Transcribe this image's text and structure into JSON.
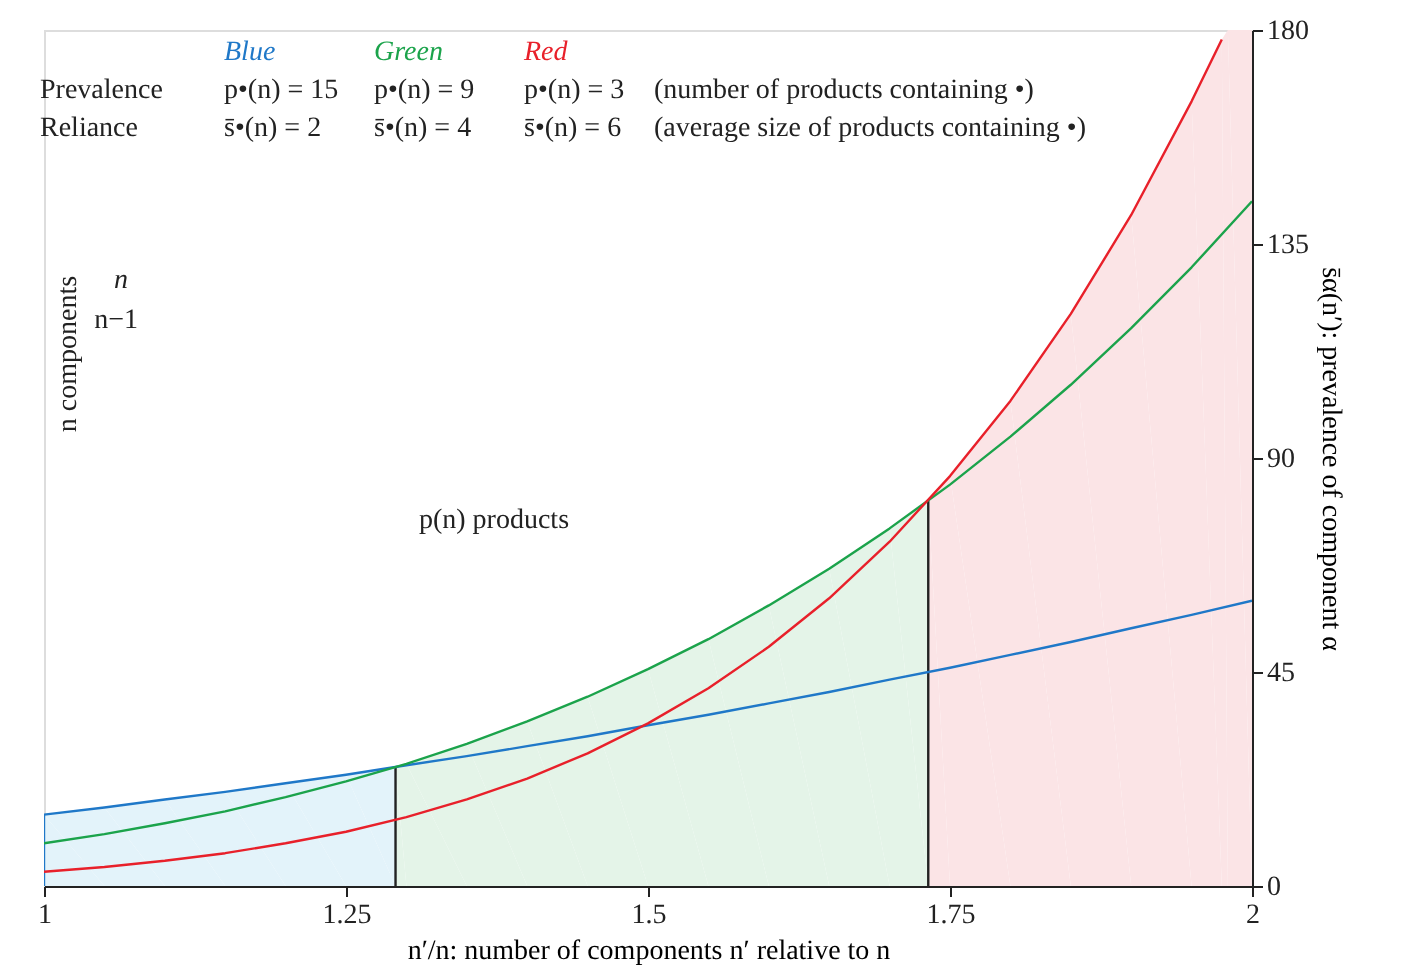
{
  "chart_data": {
    "type": "line",
    "xlabel": "n′/n: number of components n′ relative to n",
    "ylabel": "s̄α(n′): prevalence of component α",
    "xlim": [
      1,
      2
    ],
    "xticks": [
      1,
      1.25,
      1.5,
      1.75,
      2
    ],
    "ylim": [
      0,
      180
    ],
    "yticks": [
      0,
      45,
      90,
      135,
      180
    ],
    "grid": false,
    "series": [
      {
        "type": "area",
        "color": "#e3f3fa",
        "x": [
          1,
          1.05,
          1.1,
          1.15,
          1.2,
          1.25,
          1.291
        ],
        "values": [
          15,
          16.5,
          18.2,
          19.8,
          21.6,
          23.4,
          25.0
        ]
      },
      {
        "type": "area",
        "color": "#e4f4e8",
        "x": [
          1.291,
          1.3,
          1.35,
          1.4,
          1.45,
          1.5,
          1.55,
          1.6,
          1.65,
          1.7,
          1.732
        ],
        "values": [
          25.0,
          25.7,
          29.9,
          34.6,
          39.8,
          45.6,
          51.9,
          59.0,
          66.7,
          75.2,
          81.0
        ]
      },
      {
        "type": "area",
        "color": "#fbe4e6",
        "x": [
          1.732,
          1.75,
          1.8,
          1.85,
          1.9,
          1.95,
          1.975,
          1.98,
          2
        ],
        "values": [
          81.0,
          86.2,
          102.0,
          120.3,
          141.1,
          165.0,
          178.0,
          180,
          180
        ]
      },
      {
        "type": "line",
        "color": "#222222",
        "x": [
          1.291,
          1.291
        ],
        "values": [
          0,
          25.0
        ]
      },
      {
        "type": "line",
        "color": "#222222",
        "x": [
          1.732,
          1.732
        ],
        "values": [
          0,
          81.0
        ]
      },
      {
        "type": "line",
        "color": "#1f78c8",
        "x": [
          1,
          1
        ],
        "values": [
          0,
          15
        ]
      },
      {
        "type": "line",
        "color": "#1f78c8",
        "x": [
          1,
          1.05,
          1.1,
          1.15,
          1.2,
          1.25,
          1.3,
          1.35,
          1.4,
          1.45,
          1.5,
          1.55,
          1.6,
          1.65,
          1.7,
          1.75,
          1.8,
          1.85,
          1.9,
          1.95,
          2
        ],
        "values": [
          15,
          16.5,
          18.2,
          19.8,
          21.6,
          23.4,
          25.4,
          27.3,
          29.4,
          31.5,
          33.8,
          36.0,
          38.4,
          40.8,
          43.4,
          45.9,
          48.6,
          51.3,
          54.2,
          57.0,
          60
        ]
      },
      {
        "type": "line",
        "color": "#1ba34b",
        "x": [
          1,
          1.05,
          1.1,
          1.15,
          1.2,
          1.25,
          1.3,
          1.35,
          1.4,
          1.45,
          1.5,
          1.55,
          1.6,
          1.65,
          1.7,
          1.75,
          1.8,
          1.85,
          1.9,
          1.95,
          2
        ],
        "values": [
          9,
          10.9,
          13.2,
          15.7,
          18.7,
          22.0,
          25.7,
          29.9,
          34.6,
          39.8,
          45.6,
          51.9,
          59.0,
          66.7,
          75.2,
          84.4,
          94.5,
          105.4,
          117.3,
          130.1,
          144
        ]
      },
      {
        "type": "line",
        "color": "#e8202a",
        "x": [
          1,
          1.05,
          1.1,
          1.15,
          1.2,
          1.25,
          1.3,
          1.35,
          1.4,
          1.45,
          1.5,
          1.55,
          1.6,
          1.65,
          1.7,
          1.75,
          1.8,
          1.85,
          1.9,
          1.95,
          1.975
        ],
        "values": [
          3,
          4.0,
          5.3,
          6.9,
          9.0,
          11.4,
          14.5,
          18.2,
          22.6,
          27.9,
          34.2,
          41.6,
          50.3,
          60.5,
          72.4,
          86.2,
          102.0,
          120.3,
          141.1,
          165.0,
          178.0
        ]
      }
    ],
    "annotations": [
      "Blue",
      "Green",
      "Red",
      "Prevalence",
      "p•(n) = 15",
      "p•(n) = 9",
      "p•(n) = 3",
      "(number of products containing •)",
      "Reliance",
      "s̄•(n) = 2",
      "s̄•(n) = 4",
      "s̄•(n) = 6",
      "(average size of products containing •)",
      "n components",
      "n",
      "n−1",
      "p(n) products"
    ]
  }
}
